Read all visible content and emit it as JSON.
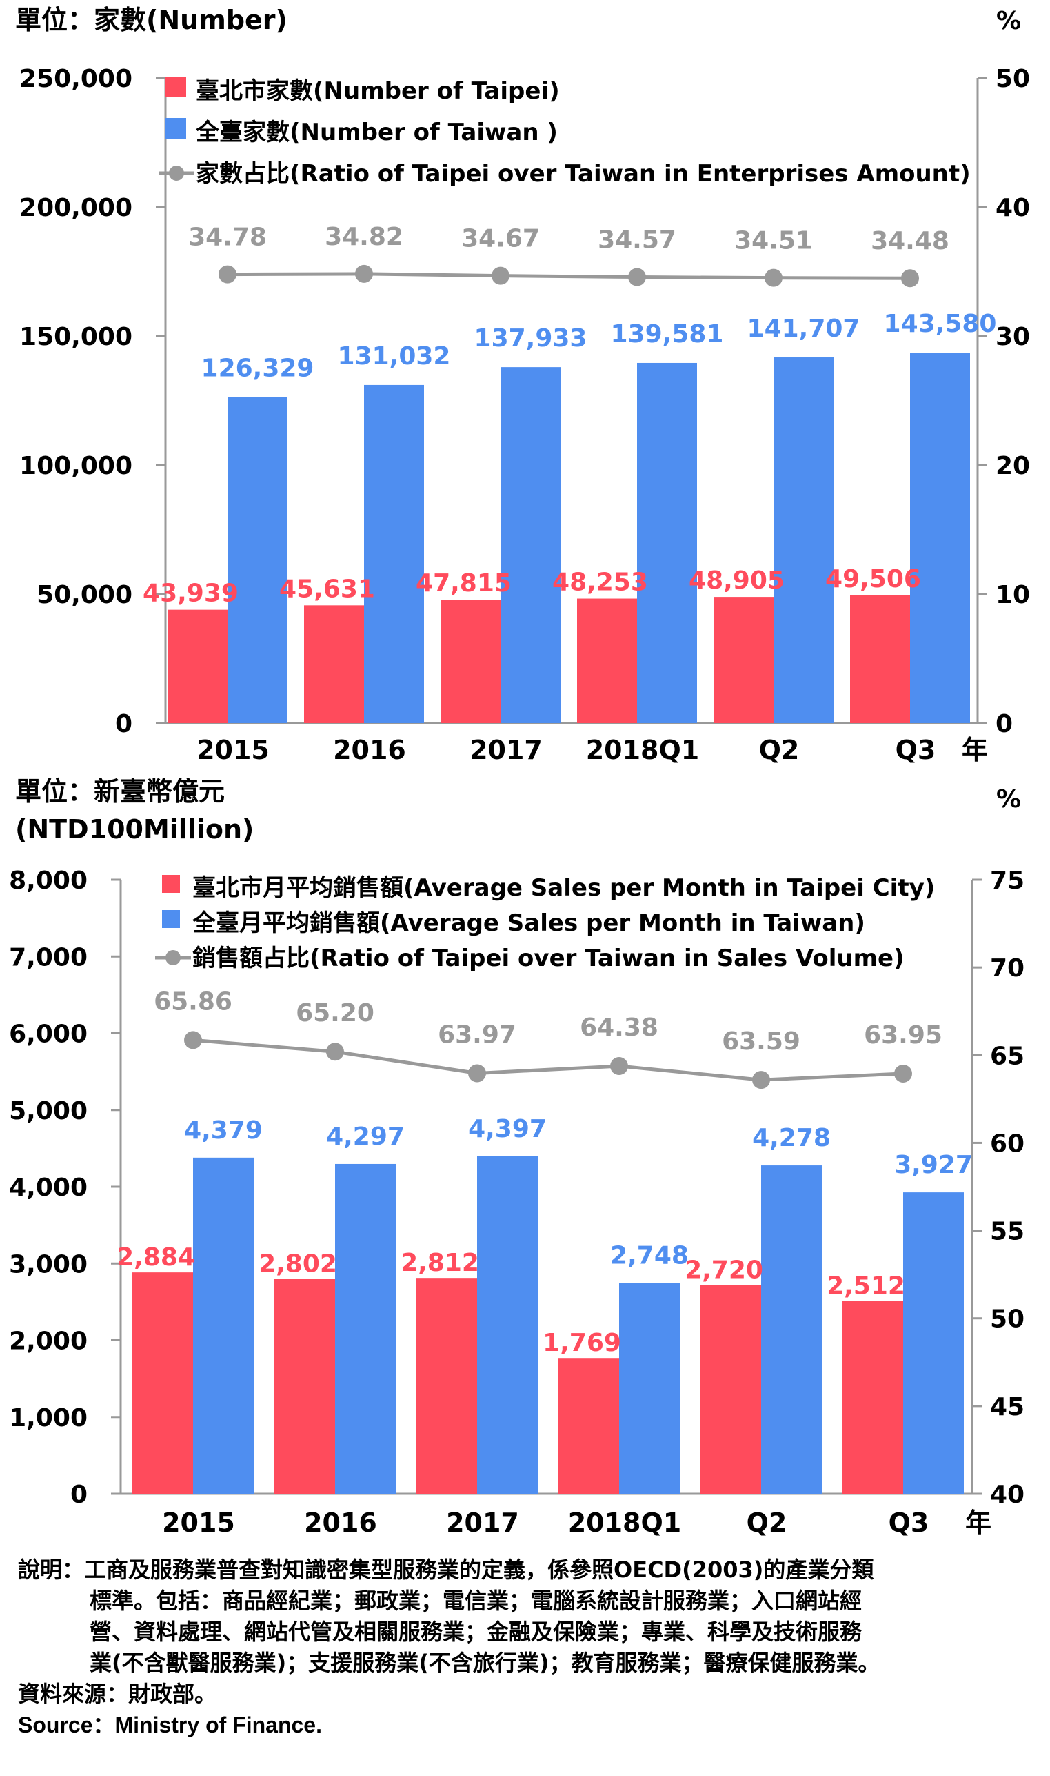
{
  "chart_data": [
    {
      "type": "bar",
      "unit_left": "單位：家數(Number)",
      "unit_right": "%",
      "x_axis_suffix": "年",
      "categories": [
        "2015",
        "2016",
        "2017",
        "2018Q1",
        "Q2",
        "Q3"
      ],
      "ylim": [
        0,
        250000
      ],
      "y_ticks": [
        "0",
        "50,000",
        "100,000",
        "150,000",
        "200,000",
        "250,000"
      ],
      "y2lim": [
        0,
        50
      ],
      "y2_ticks": [
        "0",
        "10",
        "20",
        "30",
        "40",
        "50"
      ],
      "series": [
        {
          "name": "臺北市家數(Number of  Taipei)",
          "type": "bar",
          "axis": "left",
          "color": "#ff4b5c",
          "values": [
            43939,
            45631,
            47815,
            48253,
            48905,
            49506
          ],
          "labels": [
            "43,939",
            "45,631",
            "47,815",
            "48,253",
            "48,905",
            "49,506"
          ]
        },
        {
          "name": "全臺家數(Number of Taiwan )",
          "type": "bar",
          "axis": "left",
          "color": "#4f8ef0",
          "values": [
            126329,
            131032,
            137933,
            139581,
            141707,
            143580
          ],
          "labels": [
            "126,329",
            "131,032",
            "137,933",
            "139,581",
            "141,707",
            "143,580"
          ]
        },
        {
          "name": "家數占比(Ratio of Taipei over Taiwan in Enterprises Amount)",
          "type": "line",
          "axis": "right",
          "color": "#999999",
          "values": [
            34.78,
            34.82,
            34.67,
            34.57,
            34.51,
            34.48
          ],
          "labels": [
            "34.78",
            "34.82",
            "34.67",
            "34.57",
            "34.51",
            "34.48"
          ]
        }
      ]
    },
    {
      "type": "bar",
      "unit_left": "單位：新臺幣億元",
      "unit_left_2": "(NTD100Million)",
      "unit_right": "%",
      "x_axis_suffix": "年",
      "categories": [
        "2015",
        "2016",
        "2017",
        "2018Q1",
        "Q2",
        "Q3"
      ],
      "ylim": [
        0,
        8000
      ],
      "y_ticks": [
        "0",
        "1,000",
        "2,000",
        "3,000",
        "4,000",
        "5,000",
        "6,000",
        "7,000",
        "8,000"
      ],
      "y2lim": [
        40,
        75
      ],
      "y2_ticks": [
        "40",
        "45",
        "50",
        "55",
        "60",
        "65",
        "70",
        "75"
      ],
      "series": [
        {
          "name": "臺北市月平均銷售額(Average Sales per Month in Taipei City)",
          "type": "bar",
          "axis": "left",
          "color": "#ff4b5c",
          "values": [
            2884,
            2802,
            2812,
            1769,
            2720,
            2512
          ],
          "labels": [
            "2,884",
            "2,802",
            "2,812",
            "1,769",
            "2,720",
            "2,512"
          ]
        },
        {
          "name": "全臺月平均銷售額(Average Sales per Month in Taiwan)",
          "type": "bar",
          "axis": "left",
          "color": "#4f8ef0",
          "values": [
            4379,
            4297,
            4397,
            2748,
            4278,
            3927
          ],
          "labels": [
            "4,379",
            "4,297",
            "4,397",
            "2,748",
            "4,278",
            "3,927"
          ]
        },
        {
          "name": "銷售額占比(Ratio of Taipei over Taiwan in Sales Volume)",
          "type": "line",
          "axis": "right",
          "color": "#999999",
          "values": [
            65.86,
            65.2,
            63.97,
            64.38,
            63.59,
            63.95
          ],
          "labels": [
            "65.86",
            "65.20",
            "63.97",
            "64.38",
            "63.59",
            "63.95"
          ]
        }
      ]
    }
  ],
  "notes": {
    "line1": "說明：工商及服務業普查對知識密集型服務業的定義，係參照OECD(2003)的產業分類",
    "line2": "標準。包括：商品經紀業；郵政業；電信業；電腦系統設計服務業；入口網站經",
    "line3": "營、資料處理、網站代管及相關服務業；金融及保險業；專業、科學及技術服務",
    "line4": "業(不含獸醫服務業)；支援服務業(不含旅行業)；教育服務業；醫療保健服務業。",
    "source_zh": "資料來源：財政部。",
    "source_en": "Source：Ministry of Finance."
  }
}
